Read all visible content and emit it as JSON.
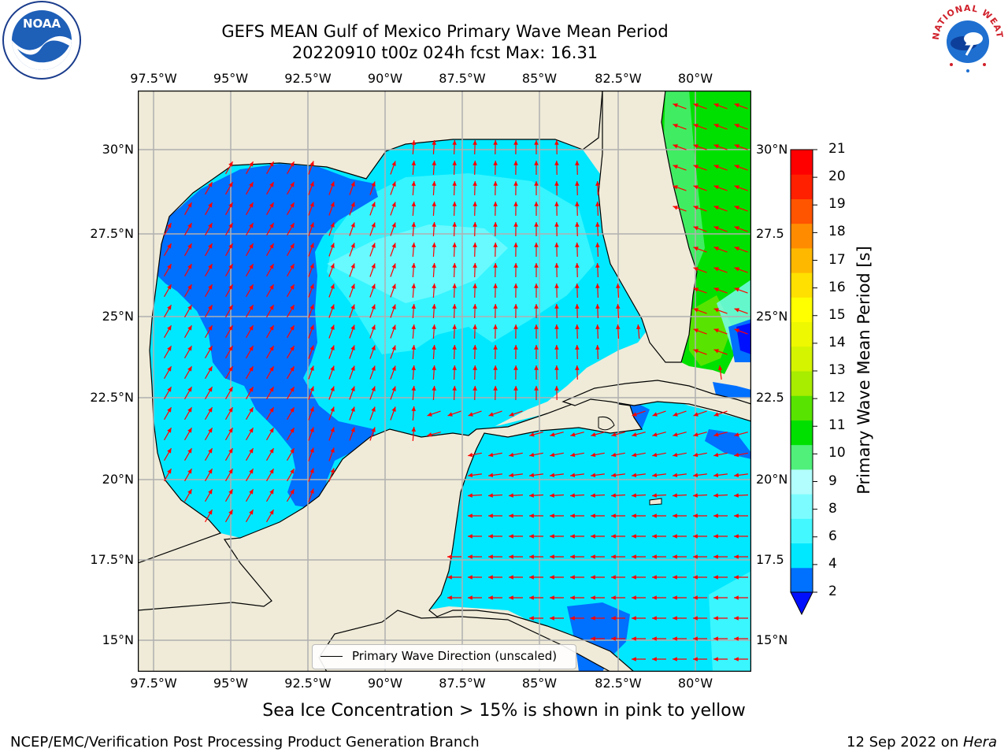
{
  "title": {
    "line1": "GEFS MEAN Gulf of Mexico Primary Wave Mean Period",
    "line2": "20220910 t00z 024h fcst   Max: 16.31"
  },
  "map": {
    "lon_ticks": [
      "97.5°W",
      "95°W",
      "92.5°W",
      "90°W",
      "87.5°W",
      "85°W",
      "82.5°W",
      "80°W"
    ],
    "lat_ticks_left": [
      "30°N",
      "27.5°N",
      "25°N",
      "22.5°N",
      "20°N",
      "17.5°N",
      "15°N"
    ],
    "lat_ticks_right": [
      "30°N",
      "27.5",
      "25°N",
      "22.5",
      "20°N",
      "17.5",
      "15°N"
    ],
    "colors": {
      "land": "#efebd8",
      "gridline": "#b0b0b0",
      "coast": "#000000",
      "arrow": "#ff0000"
    }
  },
  "legend": {
    "label": "Primary Wave Direction (unscaled)"
  },
  "colorbar": {
    "label": "Primary Wave Mean Period [s]",
    "ticks": [
      "2",
      "4",
      "6",
      "8",
      "9",
      "10",
      "11",
      "12",
      "13",
      "14",
      "15",
      "16",
      "17",
      "18",
      "19",
      "20",
      "21"
    ],
    "colors": [
      "#0070ff",
      "#00e8ff",
      "#44f8ff",
      "#7dfcff",
      "#b2fdfd",
      "#50f07a",
      "#00e000",
      "#58e400",
      "#a8ec00",
      "#d4f400",
      "#eef800",
      "#ffff00",
      "#ffe000",
      "#ffb800",
      "#ff8c00",
      "#ff5400",
      "#ff2000",
      "#ff0000"
    ],
    "under_color": "#0010ff"
  },
  "footnote": "Sea Ice Concentration > 15% is shown in pink to yellow",
  "credit_left": "NCEP/EMC/Verification Post Processing Product Generation Branch",
  "credit_right_date": "12 Sep 2022 on ",
  "credit_right_host": "Hera",
  "logos": {
    "noaa_text": "NOAA",
    "nws_text": "NATIONAL WEATHER SERVICE"
  }
}
